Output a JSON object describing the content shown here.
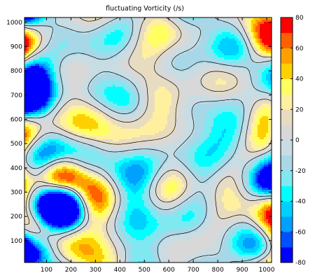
{
  "chart_data": {
    "type": "heatmap",
    "title": "fluctuating Vorticity (/s)",
    "xlabel": "",
    "ylabel": "",
    "xlim": [
      10,
      1020
    ],
    "ylim": [
      10,
      1020
    ],
    "x_ticks": [
      100,
      200,
      300,
      400,
      500,
      600,
      700,
      800,
      900,
      1000
    ],
    "y_ticks": [
      100,
      200,
      300,
      400,
      500,
      600,
      700,
      800,
      900,
      1000
    ],
    "colorbar": {
      "range": [
        -80,
        80
      ],
      "ticks": [
        80,
        60,
        40,
        20,
        0,
        -20,
        -40,
        -60,
        -80
      ],
      "colors": [
        "#0000ff",
        "#0050ff",
        "#00a0ff",
        "#00d0ff",
        "#00ffff",
        "#7fe8f0",
        "#a8d8e8",
        "#c8dce4",
        "#d8d8d8",
        "#e8dcc0",
        "#fff0a0",
        "#ffff60",
        "#ffd000",
        "#ffa000",
        "#ff6000",
        "#ff0000"
      ]
    },
    "grid": false,
    "legend": "colorbar-right",
    "colors": {
      "background_field": "#d8d8d8",
      "contour_line": "#000000",
      "axis": "#000000"
    }
  }
}
